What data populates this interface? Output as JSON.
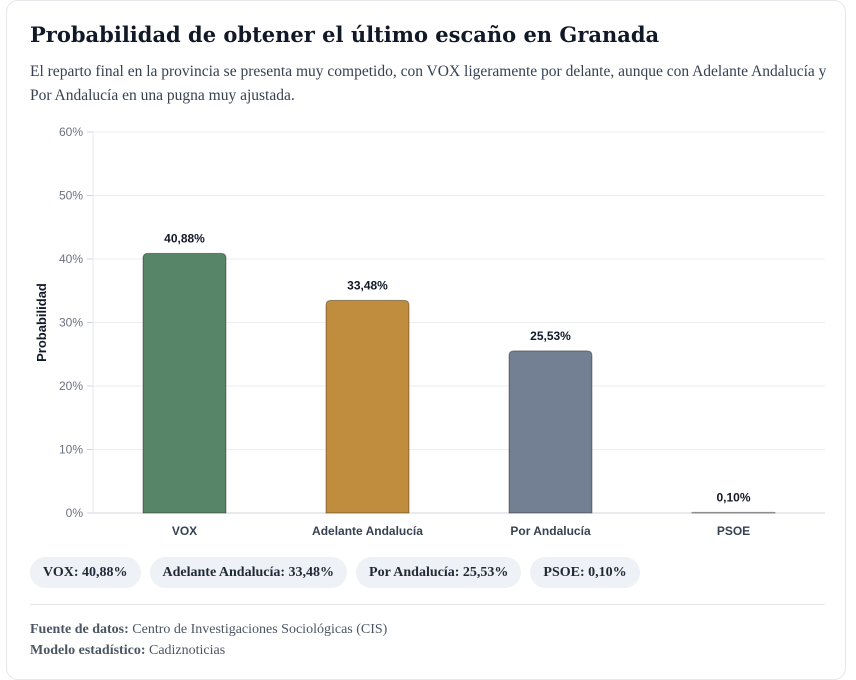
{
  "title": "Probabilidad de obtener el último escaño en Granada",
  "subtitle": "El reparto final en la provincia se presenta muy competido, con VOX ligeramente por delante, aunque con Adelante Andalucía y Por Andalucía en una pugna muy ajustada.",
  "chart_data": {
    "type": "bar",
    "categories": [
      "VOX",
      "Adelante Andalucía",
      "Por Andalucía",
      "PSOE"
    ],
    "values": [
      40.88,
      33.48,
      25.53,
      0.1
    ],
    "value_labels": [
      "40,88%",
      "33,48%",
      "25,53%",
      "0,10%"
    ],
    "colors": [
      "#568567",
      "#c08d3e",
      "#737f93",
      "#c4c4c4"
    ],
    "ylabel": "Probabilidad",
    "xlabel": "",
    "ylim": [
      0,
      60
    ],
    "yticks": [
      0,
      10,
      20,
      30,
      40,
      50,
      60
    ],
    "ytick_labels": [
      "0%",
      "10%",
      "20%",
      "30%",
      "40%",
      "50%",
      "60%"
    ],
    "grid": true
  },
  "legend": [
    "VOX: 40,88%",
    "Adelante Andalucía: 33,48%",
    "Por Andalucía: 25,53%",
    "PSOE: 0,10%"
  ],
  "footer": {
    "source_label": "Fuente de datos:",
    "source_value": "Centro de Investigaciones Sociológicas (CIS)",
    "model_label": "Modelo estadístico:",
    "model_value": "Cadiznoticias"
  }
}
